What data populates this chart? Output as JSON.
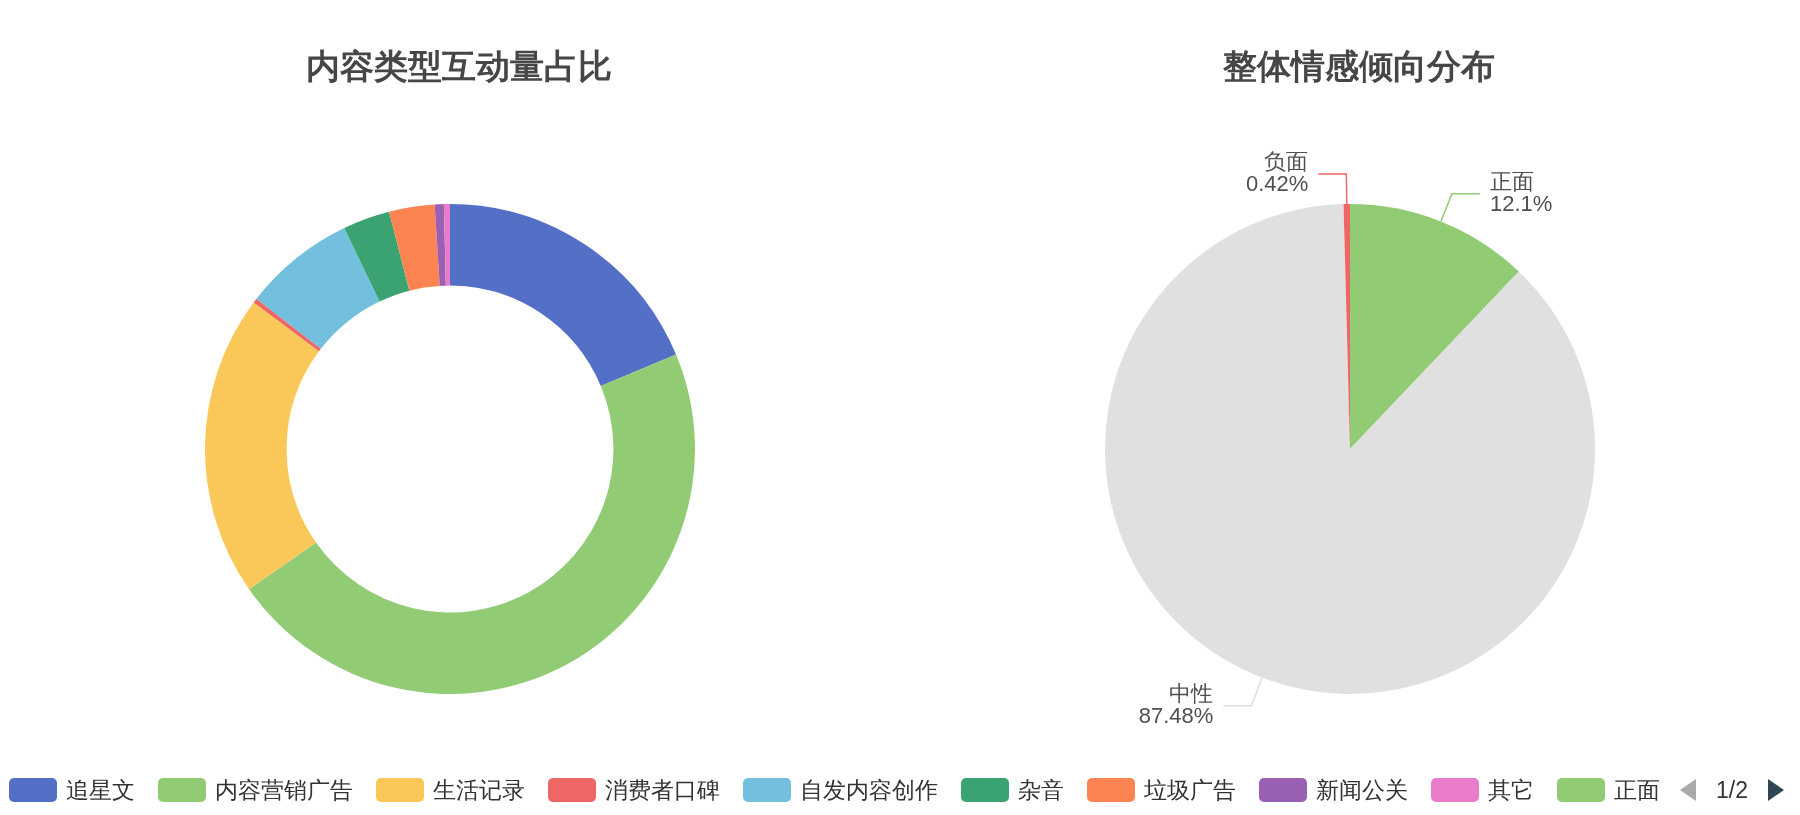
{
  "chart_data": [
    {
      "type": "donut",
      "title": "内容类型互动量占比",
      "categories": [
        "追星文",
        "内容营销广告",
        "生活记录",
        "消费者口碑",
        "自发内容创作",
        "杂音",
        "垃圾广告",
        "新闻公关",
        "其它"
      ],
      "values": [
        18.7,
        46.6,
        19.9,
        0.3,
        7.4,
        3.1,
        3.0,
        0.6,
        0.4
      ],
      "colors": [
        "#5470c6",
        "#91cc75",
        "#fac858",
        "#ee6666",
        "#73c0de",
        "#3ba272",
        "#fc8452",
        "#9a60b4",
        "#ea7ccc"
      ],
      "legend": "bottom"
    },
    {
      "type": "pie",
      "title": "整体情感倾向分布",
      "categories": [
        "正面",
        "中性",
        "负面"
      ],
      "values": [
        12.1,
        87.48,
        0.42
      ],
      "colors": [
        "#91cc75",
        "#e0e0e0",
        "#ee6666"
      ],
      "value_labels": [
        "12.1%",
        "87.48%",
        "0.42%"
      ],
      "legend": "bottom",
      "annotations": [
        "1/2"
      ]
    }
  ]
}
